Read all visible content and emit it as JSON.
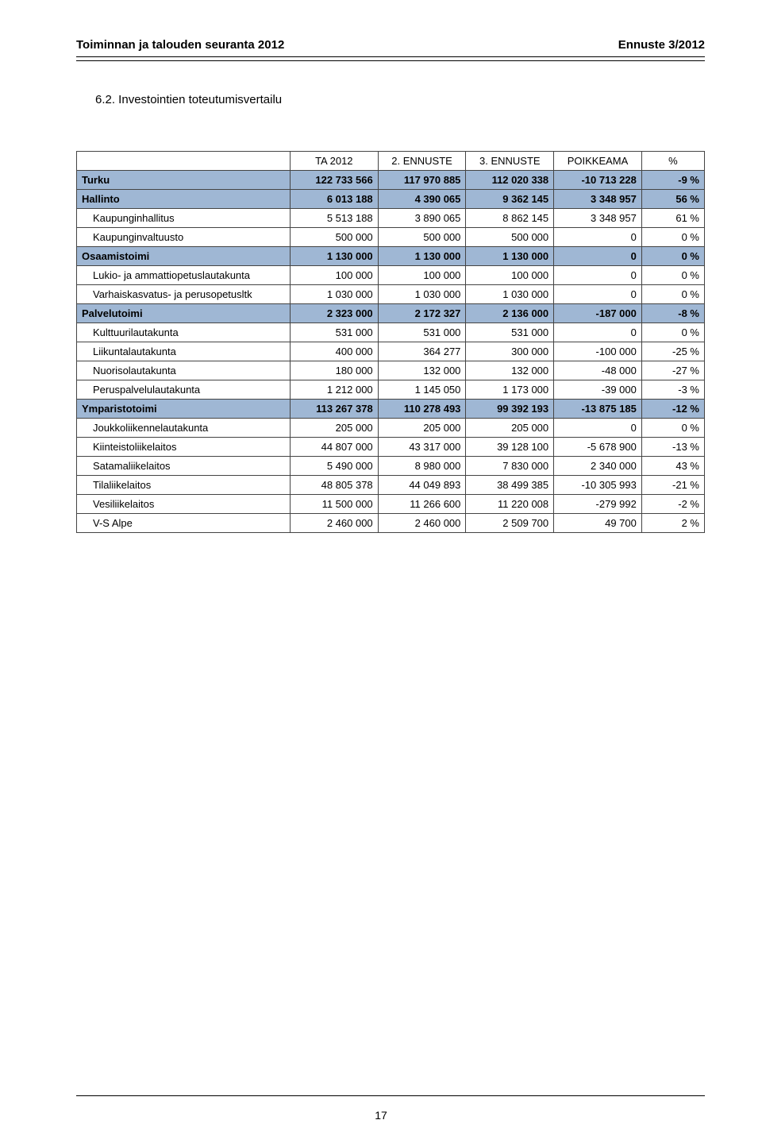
{
  "header": {
    "left": "Toiminnan ja talouden seuranta 2012",
    "right": "Ennuste 3/2012"
  },
  "section_title": "6.2. Investointien toteutumisvertailu",
  "page_number": "17",
  "table": {
    "columns": [
      "",
      "TA 2012",
      "2. ENNUSTE",
      "3. ENNUSTE",
      "POIKKEAMA",
      "%"
    ],
    "col_widths": [
      "34%",
      "14%",
      "14%",
      "14%",
      "14%",
      "10%"
    ],
    "rows": [
      {
        "level": "city",
        "label": "Turku",
        "c1": "122 733 566",
        "c2": "117 970 885",
        "c3": "112 020 338",
        "c4": "-10 713 228",
        "c5": "-9 %"
      },
      {
        "level": "group",
        "label": "Hallinto",
        "c1": "6 013 188",
        "c2": "4 390 065",
        "c3": "9 362 145",
        "c4": "3 348 957",
        "c5": "56 %"
      },
      {
        "level": "sub",
        "label": "Kaupunginhallitus",
        "c1": "5 513 188",
        "c2": "3 890 065",
        "c3": "8 862 145",
        "c4": "3 348 957",
        "c5": "61 %"
      },
      {
        "level": "sub",
        "label": "Kaupunginvaltuusto",
        "c1": "500 000",
        "c2": "500 000",
        "c3": "500 000",
        "c4": "0",
        "c5": "0 %"
      },
      {
        "level": "group",
        "label": "Osaamistoimi",
        "c1": "1 130 000",
        "c2": "1 130 000",
        "c3": "1 130 000",
        "c4": "0",
        "c5": "0 %"
      },
      {
        "level": "sub",
        "label": "Lukio- ja ammattiopetuslautakunta",
        "c1": "100 000",
        "c2": "100 000",
        "c3": "100 000",
        "c4": "0",
        "c5": "0 %"
      },
      {
        "level": "sub",
        "label": "Varhaiskasvatus- ja perusopetusltk",
        "c1": "1 030 000",
        "c2": "1 030 000",
        "c3": "1 030 000",
        "c4": "0",
        "c5": "0 %"
      },
      {
        "level": "group",
        "label": "Palvelutoimi",
        "c1": "2 323 000",
        "c2": "2 172 327",
        "c3": "2 136 000",
        "c4": "-187 000",
        "c5": "-8 %"
      },
      {
        "level": "sub",
        "label": "Kulttuurilautakunta",
        "c1": "531 000",
        "c2": "531 000",
        "c3": "531 000",
        "c4": "0",
        "c5": "0 %"
      },
      {
        "level": "sub",
        "label": "Liikuntalautakunta",
        "c1": "400 000",
        "c2": "364 277",
        "c3": "300 000",
        "c4": "-100 000",
        "c5": "-25 %"
      },
      {
        "level": "sub",
        "label": "Nuorisolautakunta",
        "c1": "180 000",
        "c2": "132 000",
        "c3": "132 000",
        "c4": "-48 000",
        "c5": "-27 %"
      },
      {
        "level": "sub",
        "label": "Peruspalvelulautakunta",
        "c1": "1 212 000",
        "c2": "1 145 050",
        "c3": "1 173 000",
        "c4": "-39 000",
        "c5": "-3 %"
      },
      {
        "level": "group",
        "label": "Ymparistotoimi",
        "c1": "113 267 378",
        "c2": "110 278 493",
        "c3": "99 392 193",
        "c4": "-13 875 185",
        "c5": "-12 %"
      },
      {
        "level": "sub",
        "label": "Joukkoliikennelautakunta",
        "c1": "205 000",
        "c2": "205 000",
        "c3": "205 000",
        "c4": "0",
        "c5": "0 %"
      },
      {
        "level": "sub",
        "label": "Kiinteistoliikelaitos",
        "c1": "44 807 000",
        "c2": "43 317 000",
        "c3": "39 128 100",
        "c4": "-5 678 900",
        "c5": "-13 %"
      },
      {
        "level": "sub",
        "label": "Satamaliikelaitos",
        "c1": "5 490 000",
        "c2": "8 980 000",
        "c3": "7 830 000",
        "c4": "2 340 000",
        "c5": "43 %"
      },
      {
        "level": "sub",
        "label": "Tilaliikelaitos",
        "c1": "48 805 378",
        "c2": "44 049 893",
        "c3": "38 499 385",
        "c4": "-10 305 993",
        "c5": "-21 %"
      },
      {
        "level": "sub",
        "label": "Vesiliikelaitos",
        "c1": "11 500 000",
        "c2": "11 266 600",
        "c3": "11 220 008",
        "c4": "-279 992",
        "c5": "-2 %"
      },
      {
        "level": "sub",
        "label": "V-S Alpe",
        "c1": "2 460 000",
        "c2": "2 460 000",
        "c3": "2 509 700",
        "c4": "49 700",
        "c5": "2 %"
      }
    ]
  },
  "colors": {
    "highlight_bg": "#9fb7d4",
    "border": "#444444",
    "text": "#000000",
    "background": "#ffffff"
  }
}
